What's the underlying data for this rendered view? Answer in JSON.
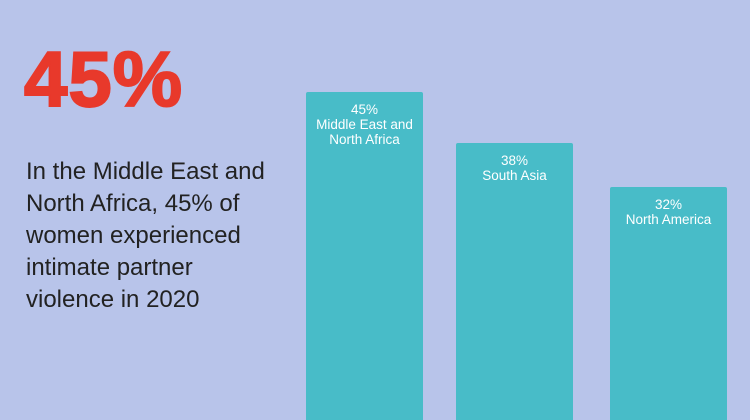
{
  "chart_data": {
    "type": "bar",
    "headline": "45%",
    "description": [
      "In the Middle East and",
      "North Africa, 45% of",
      "women experienced",
      "intimate partner",
      "violence in 2020"
    ],
    "categories": [
      "Middle East and North Africa",
      "South Asia",
      "North America"
    ],
    "values": [
      45,
      38,
      32
    ],
    "value_labels": [
      "45%",
      "38%",
      "32%"
    ],
    "color": "#48bcc8"
  }
}
